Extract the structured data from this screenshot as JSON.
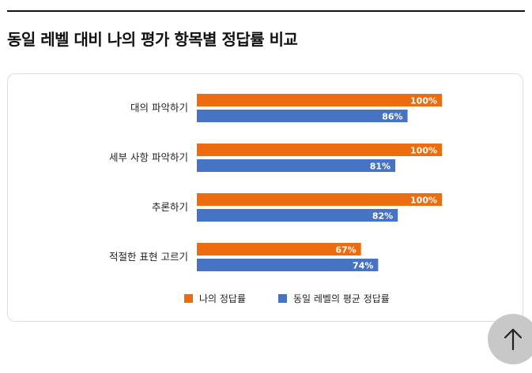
{
  "page": {
    "title": "동일 레벨 대비 나의 평가 항목별 정답률 비교"
  },
  "colors": {
    "mine": "#ec6c0f",
    "peer": "#4673c4"
  },
  "chart_data": {
    "type": "bar",
    "orientation": "horizontal",
    "categories": [
      "대의 파악하기",
      "세부 사항 파악하기",
      "추론하기",
      "적절한 표현 고르기"
    ],
    "series": [
      {
        "name": "나의 정답률",
        "values": [
          100,
          100,
          100,
          67
        ],
        "labels": [
          "100%",
          "100%",
          "100%",
          "67%"
        ]
      },
      {
        "name": "동일 레벨의 평균 정답률",
        "values": [
          86,
          81,
          82,
          74
        ],
        "labels": [
          "86%",
          "81%",
          "82%",
          "74%"
        ]
      }
    ],
    "xlim": [
      0,
      100
    ],
    "grid": false,
    "legend": "bottom-center"
  },
  "scroll_top": {
    "icon": "arrow-up-icon"
  }
}
